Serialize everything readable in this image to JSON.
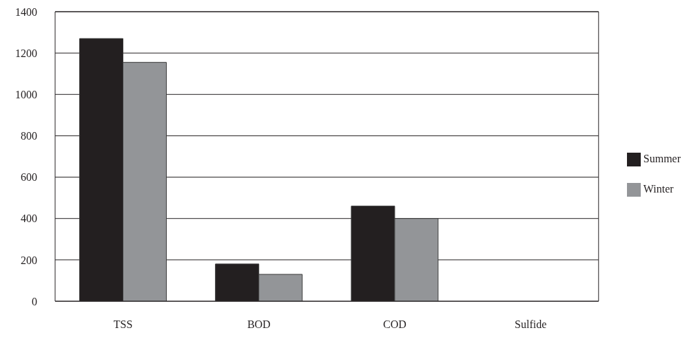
{
  "chart_data": {
    "type": "bar",
    "categories": [
      "TSS",
      "BOD",
      "COD",
      "Sulfide"
    ],
    "series": [
      {
        "name": "Summer",
        "color": "#231f20",
        "values": [
          1270,
          180,
          460,
          0
        ]
      },
      {
        "name": "Winter",
        "color": "#939598",
        "values": [
          1155,
          130,
          400,
          0
        ]
      }
    ],
    "ylim": [
      0,
      1400
    ],
    "yticks": [
      0,
      200,
      400,
      600,
      800,
      1000,
      1200,
      1400
    ],
    "grid": "y",
    "legend": "right"
  }
}
